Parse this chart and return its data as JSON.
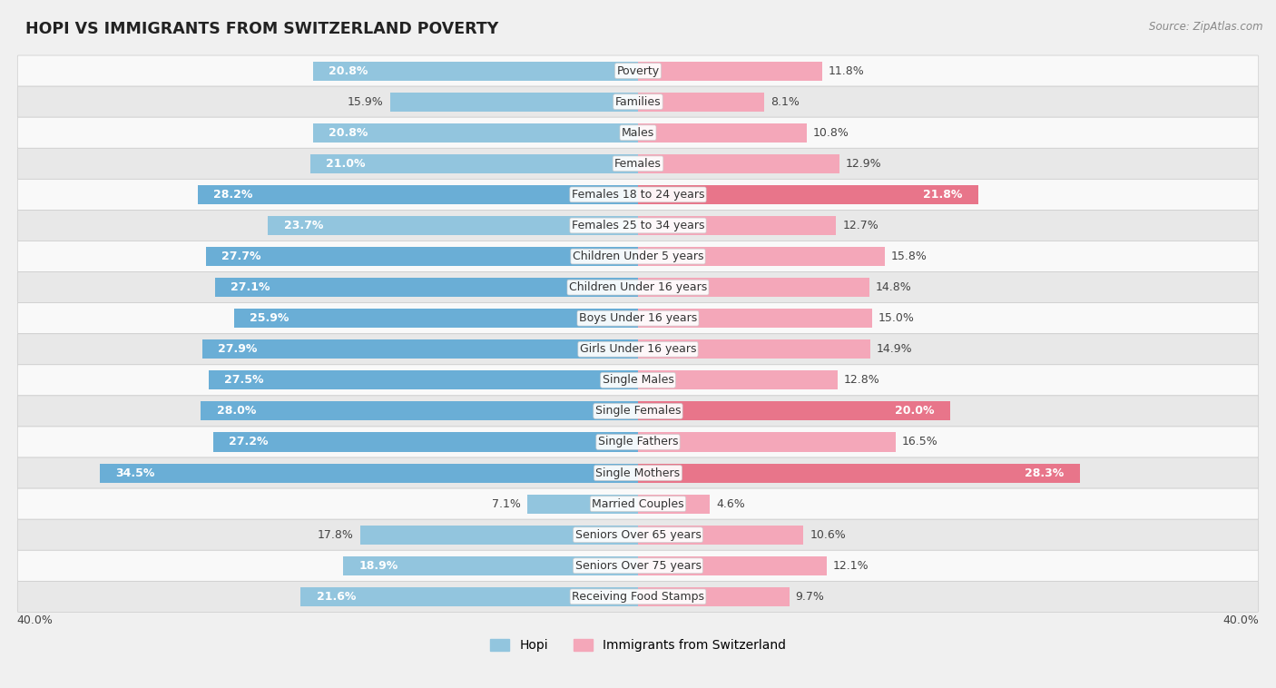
{
  "title": "HOPI VS IMMIGRANTS FROM SWITZERLAND POVERTY",
  "source": "Source: ZipAtlas.com",
  "categories": [
    "Poverty",
    "Families",
    "Males",
    "Females",
    "Females 18 to 24 years",
    "Females 25 to 34 years",
    "Children Under 5 years",
    "Children Under 16 years",
    "Boys Under 16 years",
    "Girls Under 16 years",
    "Single Males",
    "Single Females",
    "Single Fathers",
    "Single Mothers",
    "Married Couples",
    "Seniors Over 65 years",
    "Seniors Over 75 years",
    "Receiving Food Stamps"
  ],
  "hopi_values": [
    20.8,
    15.9,
    20.8,
    21.0,
    28.2,
    23.7,
    27.7,
    27.1,
    25.9,
    27.9,
    27.5,
    28.0,
    27.2,
    34.5,
    7.1,
    17.8,
    18.9,
    21.6
  ],
  "swiss_values": [
    11.8,
    8.1,
    10.8,
    12.9,
    21.8,
    12.7,
    15.8,
    14.8,
    15.0,
    14.9,
    12.8,
    20.0,
    16.5,
    28.3,
    4.6,
    10.6,
    12.1,
    9.7
  ],
  "hopi_color_light": "#92c5de",
  "hopi_color_dark": "#6aaed6",
  "swiss_color_light": "#f4a7b9",
  "swiss_color_dark": "#e8758a",
  "background_color": "#f0f0f0",
  "row_bg_light": "#f9f9f9",
  "row_bg_dark": "#e8e8e8",
  "axis_limit": 40.0,
  "legend_hopi": "Hopi",
  "legend_swiss": "Immigrants from Switzerland",
  "bar_height": 0.62,
  "label_fontsize": 9.0,
  "title_fontsize": 12.5,
  "category_fontsize": 9.0,
  "value_inside_threshold": 18.0,
  "hopi_dark_threshold": 25.0,
  "swiss_dark_threshold": 20.0
}
